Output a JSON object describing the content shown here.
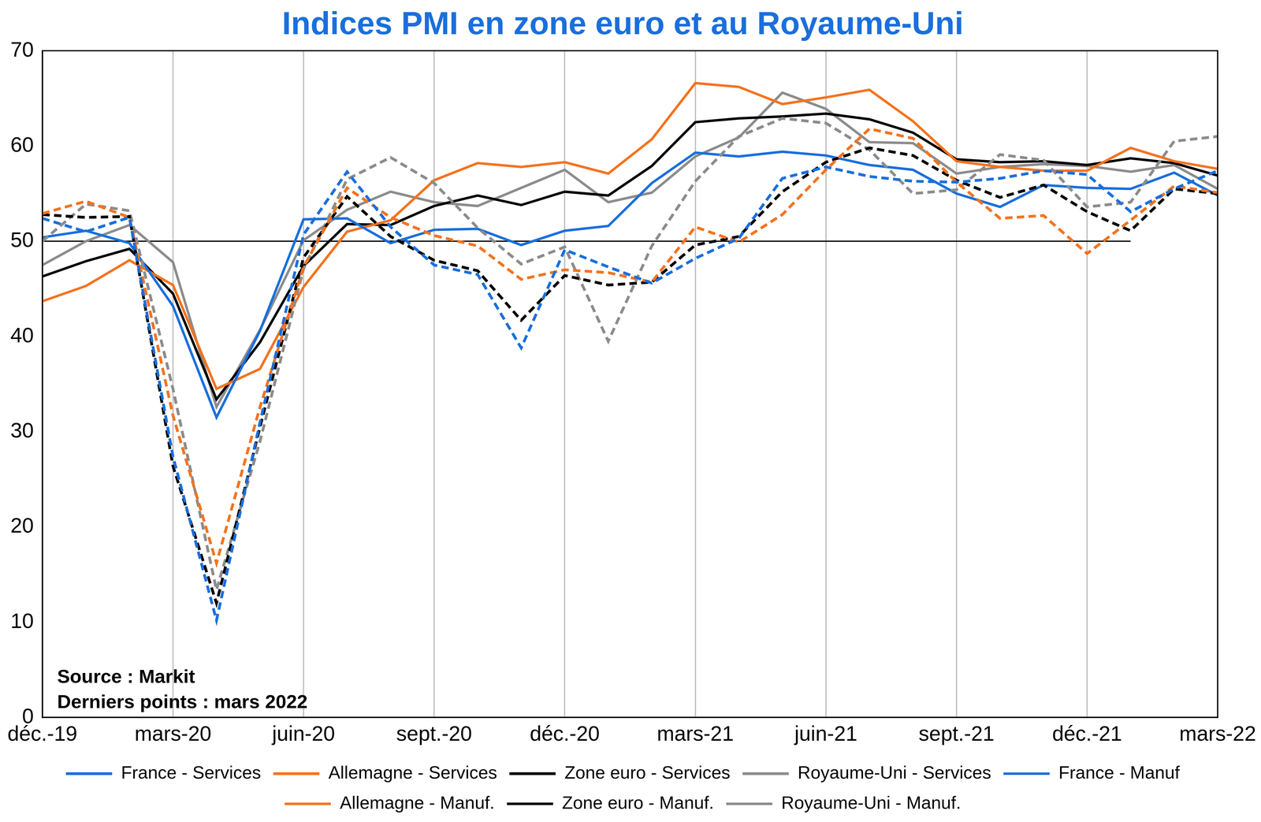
{
  "chart_data": {
    "type": "line",
    "title": "Indices PMI en zone euro et au Royaume-Uni",
    "annotations": [
      "Source : Markit",
      "Derniers points : mars 2022"
    ],
    "categories": [
      "déc.-19",
      null,
      null,
      "mars-20",
      null,
      null,
      "juin-20",
      null,
      null,
      "sept.-20",
      null,
      null,
      "déc.-20",
      null,
      null,
      "mars-21",
      null,
      null,
      "juin-21",
      null,
      null,
      "sept.-21",
      null,
      null,
      "déc.-21",
      null,
      null,
      "mars-22"
    ],
    "ylim": [
      0,
      70
    ],
    "yticks": [
      0,
      10,
      20,
      30,
      40,
      50,
      60,
      70
    ],
    "grid": "x",
    "legend": "bottom",
    "series": [
      {
        "name": "France - Services",
        "color": "#1a6fdc",
        "line_style": "dashed",
        "values": [
          52.4,
          51.0,
          52.5,
          27.4,
          10.2,
          31.0,
          50.7,
          57.3,
          51.5,
          47.5,
          46.5,
          38.8,
          49.1,
          47.3,
          45.6,
          48.2,
          50.3,
          56.6,
          57.8,
          56.8,
          56.3,
          56.2,
          56.6,
          57.4,
          57.0,
          53.1,
          55.5,
          57.4
        ]
      },
      {
        "name": "Allemagne - Services",
        "color": "#f4731f",
        "line_style": "dashed",
        "values": [
          52.9,
          54.2,
          52.5,
          31.7,
          16.2,
          32.6,
          47.3,
          55.6,
          52.5,
          50.6,
          49.5,
          46.0,
          47.0,
          46.7,
          45.7,
          51.5,
          49.9,
          52.8,
          57.5,
          61.8,
          60.8,
          56.2,
          52.4,
          52.7,
          48.7,
          52.2,
          55.8,
          55.1
        ]
      },
      {
        "name": "Zone euro - Services",
        "color": "#000000",
        "line_style": "dashed",
        "values": [
          52.8,
          52.5,
          52.6,
          26.4,
          12.0,
          30.5,
          48.3,
          54.7,
          50.5,
          48.0,
          46.9,
          41.7,
          46.4,
          45.4,
          45.7,
          49.6,
          50.5,
          55.2,
          58.3,
          59.8,
          59.0,
          56.4,
          54.6,
          55.9,
          53.1,
          51.1,
          55.5,
          55.0
        ]
      },
      {
        "name": "Royaume-Uni - Services",
        "color": "#8c8c8c",
        "line_style": "dashed",
        "values": [
          50.0,
          53.9,
          53.2,
          34.5,
          13.4,
          29.0,
          47.1,
          56.5,
          58.8,
          56.1,
          51.4,
          47.6,
          49.4,
          39.5,
          49.5,
          56.3,
          61.0,
          62.9,
          62.4,
          59.6,
          55.0,
          55.4,
          59.1,
          58.5,
          53.6,
          54.1,
          60.5,
          61.0
        ]
      },
      {
        "name": "France - Manuf",
        "color": "#1a6fdc",
        "line_style": "solid",
        "values": [
          50.4,
          51.1,
          49.8,
          43.2,
          31.5,
          40.6,
          52.3,
          52.4,
          49.8,
          51.2,
          51.3,
          49.6,
          51.1,
          51.6,
          56.1,
          59.3,
          58.9,
          59.4,
          59.0,
          58.0,
          57.5,
          55.0,
          53.6,
          55.9,
          55.6,
          55.5,
          57.2,
          54.8
        ]
      },
      {
        "name": "Allemagne - Manuf.",
        "color": "#f4731f",
        "line_style": "solid",
        "values": [
          43.7,
          45.3,
          48.0,
          45.4,
          34.5,
          36.6,
          45.2,
          51.0,
          52.2,
          56.4,
          58.2,
          57.8,
          58.3,
          57.1,
          60.7,
          66.6,
          66.2,
          64.4,
          65.1,
          65.9,
          62.6,
          58.4,
          57.8,
          57.4,
          57.4,
          59.8,
          58.4,
          57.6
        ]
      },
      {
        "name": "Zone euro - Manuf.",
        "color": "#000000",
        "line_style": "solid",
        "values": [
          46.3,
          47.9,
          49.2,
          44.5,
          33.4,
          39.4,
          47.4,
          51.8,
          51.7,
          53.7,
          54.8,
          53.8,
          55.2,
          54.8,
          57.9,
          62.5,
          62.9,
          63.1,
          63.4,
          62.8,
          61.4,
          58.6,
          58.3,
          58.4,
          58.0,
          58.7,
          58.2,
          56.9
        ]
      },
      {
        "name": "Royaume-Uni - Manuf.",
        "color": "#8c8c8c",
        "line_style": "solid",
        "values": [
          47.5,
          50.0,
          51.7,
          47.8,
          32.6,
          40.7,
          50.1,
          53.3,
          55.2,
          54.1,
          53.7,
          55.6,
          57.5,
          54.1,
          55.1,
          58.9,
          60.9,
          65.6,
          63.9,
          60.4,
          60.3,
          57.1,
          57.8,
          58.1,
          57.9,
          57.3,
          58.0,
          55.5
        ]
      },
      {
        "color": "#000000",
        "line_style": "solid",
        "values": [
          50,
          50,
          50,
          50,
          50,
          50,
          50,
          50,
          50,
          50,
          50,
          50,
          50,
          50,
          50,
          50,
          50,
          50,
          50,
          50,
          50,
          50,
          50,
          50,
          50,
          50,
          null,
          null
        ]
      }
    ]
  }
}
